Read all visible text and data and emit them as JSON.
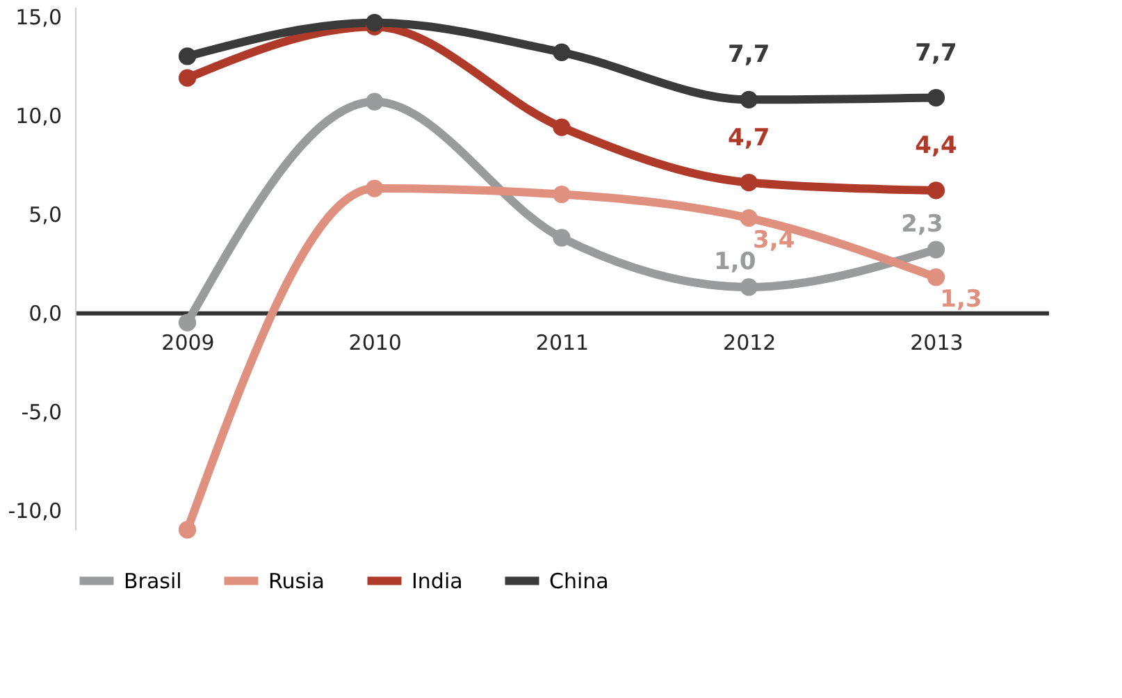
{
  "chart_data": {
    "type": "line",
    "categories": [
      "2009",
      "2010",
      "2011",
      "2012",
      "2013"
    ],
    "series": [
      {
        "name": "Brasil",
        "color": "#9a9b9d",
        "values": [
          -0.5,
          10.7,
          3.8,
          1.3,
          3.2
        ]
      },
      {
        "name": "Rusia",
        "color": "#e0907f",
        "values": [
          -11.0,
          6.3,
          6.0,
          4.8,
          1.8
        ]
      },
      {
        "name": "India",
        "color": "#b03a2a",
        "values": [
          11.9,
          14.5,
          9.4,
          6.6,
          6.2
        ]
      },
      {
        "name": "China",
        "color": "#3a3a3a",
        "values": [
          13.0,
          14.7,
          13.2,
          10.8,
          10.9
        ]
      }
    ],
    "annotations": [
      {
        "text": "7,7",
        "x": "2012",
        "y": 10.8
      },
      {
        "text": "7,7",
        "x": "2013",
        "y": 10.9
      },
      {
        "text": "4,7",
        "x": "2012",
        "y": 6.6
      },
      {
        "text": "4,4",
        "x": "2013",
        "y": 6.2
      },
      {
        "text": "1,0",
        "x": "2012",
        "y": 1.3
      },
      {
        "text": "2,3",
        "x": "2013",
        "y": 3.2
      },
      {
        "text": "3,4",
        "x": "2012",
        "y": 4.8
      },
      {
        "text": "1,3",
        "x": "2013",
        "y": 1.8
      }
    ],
    "ylim": [
      -11.0,
      15.5
    ],
    "yticks": [
      {
        "value": -10,
        "label": "-10,0"
      },
      {
        "value": -5,
        "label": "-5,0"
      },
      {
        "value": 0,
        "label": "0,0"
      },
      {
        "value": 5,
        "label": "5,0"
      },
      {
        "value": 10,
        "label": "10,0"
      },
      {
        "value": 15,
        "label": "15,0"
      }
    ],
    "grid": false,
    "legend": "bottom",
    "marker": "circle",
    "line_style": "solid"
  }
}
